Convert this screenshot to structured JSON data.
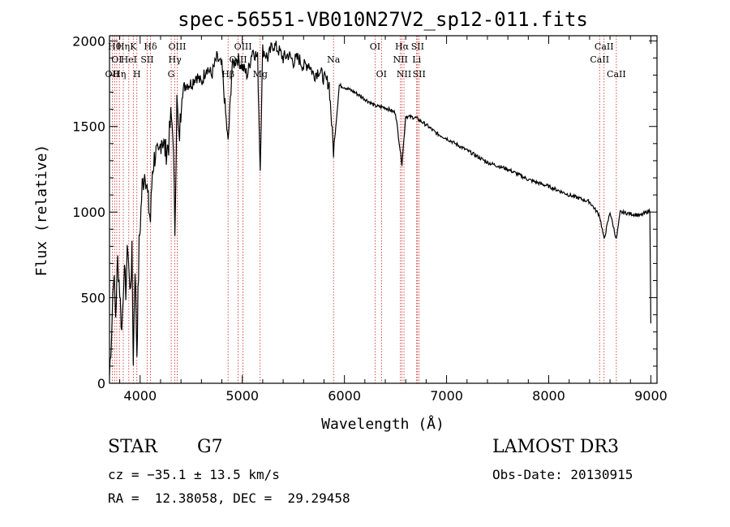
{
  "chart_data": {
    "type": "line",
    "title": "spec-56551-VB010N27V2_sp12-011.fits",
    "xlabel": "Wavelength (Å)",
    "ylabel": "Flux (relative)",
    "xlim": [
      3700,
      9060
    ],
    "ylim": [
      0,
      2030
    ],
    "xticks": [
      4000,
      5000,
      6000,
      7000,
      8000,
      9000
    ],
    "xtick_labels": [
      "4000",
      "5000",
      "6000",
      "7000",
      "8000",
      "9000"
    ],
    "yticks": [
      0,
      500,
      1000,
      1500,
      2000
    ],
    "ytick_labels": [
      "0",
      "500",
      "1000",
      "1500",
      "2000"
    ],
    "series": [
      {
        "name": "flux",
        "x": [
          3700,
          3720,
          3740,
          3760,
          3780,
          3800,
          3820,
          3840,
          3860,
          3880,
          3900,
          3920,
          3933,
          3950,
          3968,
          3990,
          4020,
          4050,
          4080,
          4101,
          4120,
          4150,
          4180,
          4210,
          4250,
          4280,
          4300,
          4320,
          4340,
          4360,
          4380,
          4410,
          4450,
          4500,
          4550,
          4600,
          4650,
          4700,
          4750,
          4800,
          4861,
          4900,
          4950,
          5000,
          5050,
          5100,
          5150,
          5175,
          5200,
          5250,
          5300,
          5350,
          5400,
          5450,
          5500,
          5550,
          5600,
          5650,
          5700,
          5750,
          5800,
          5850,
          5893,
          5950,
          6000,
          6100,
          6200,
          6300,
          6400,
          6500,
          6563,
          6600,
          6700,
          6800,
          6900,
          7000,
          7200,
          7400,
          7600,
          7800,
          8000,
          8200,
          8400,
          8498,
          8542,
          8600,
          8662,
          8700,
          8800,
          8900,
          8990,
          9000
        ],
        "values": [
          50,
          300,
          650,
          400,
          720,
          550,
          300,
          650,
          550,
          820,
          520,
          750,
          150,
          700,
          180,
          800,
          1150,
          1250,
          1050,
          950,
          1250,
          1350,
          1300,
          1450,
          1350,
          1400,
          1550,
          1500,
          900,
          1650,
          1400,
          1700,
          1750,
          1750,
          1800,
          1750,
          1850,
          1800,
          1900,
          1850,
          1400,
          1850,
          1900,
          1850,
          1800,
          1950,
          1900,
          1250,
          1950,
          1900,
          1980,
          1950,
          1900,
          1920,
          1880,
          1900,
          1850,
          1870,
          1800,
          1830,
          1780,
          1750,
          1350,
          1740,
          1730,
          1700,
          1660,
          1620,
          1610,
          1580,
          1280,
          1560,
          1550,
          1510,
          1460,
          1430,
          1360,
          1290,
          1250,
          1190,
          1150,
          1100,
          1060,
          980,
          840,
          1000,
          840,
          1000,
          990,
          980,
          1010,
          350
        ]
      }
    ],
    "lines": [
      {
        "wl": 3727,
        "label": "OII",
        "row": 3
      },
      {
        "wl": 3750,
        "label": "Hθ",
        "row": 1
      },
      {
        "wl": 3771,
        "label": "OI",
        "row": 2
      },
      {
        "wl": 3797,
        "label": "Hη",
        "row": 3
      },
      {
        "wl": 3835,
        "label": "Hη",
        "row": 1
      },
      {
        "wl": 3889,
        "label": "HeI",
        "row": 2
      },
      {
        "wl": 3933,
        "label": "K",
        "row": 1
      },
      {
        "wl": 3968,
        "label": "H",
        "row": 3
      },
      {
        "wl": 4069,
        "label": "SII",
        "row": 2
      },
      {
        "wl": 4101,
        "label": "Hδ",
        "row": 1
      },
      {
        "wl": 4304,
        "label": "G",
        "row": 3
      },
      {
        "wl": 4340,
        "label": "Hγ",
        "row": 2
      },
      {
        "wl": 4363,
        "label": "OIII",
        "row": 1
      },
      {
        "wl": 4861,
        "label": "Hβ",
        "row": 3
      },
      {
        "wl": 4959,
        "label": "OIII",
        "row": 2
      },
      {
        "wl": 5007,
        "label": "OIII",
        "row": 1
      },
      {
        "wl": 5175,
        "label": "Mg",
        "row": 3
      },
      {
        "wl": 5893,
        "label": "Na",
        "row": 2
      },
      {
        "wl": 6300,
        "label": "OI",
        "row": 1
      },
      {
        "wl": 6363,
        "label": "OI",
        "row": 3
      },
      {
        "wl": 6548,
        "label": "NII",
        "row": 2
      },
      {
        "wl": 6563,
        "label": "Hα",
        "row": 1
      },
      {
        "wl": 6583,
        "label": "NII",
        "row": 3
      },
      {
        "wl": 6707,
        "label": "Li",
        "row": 2
      },
      {
        "wl": 6716,
        "label": "SII",
        "row": 1
      },
      {
        "wl": 6731,
        "label": "SII",
        "row": 3
      },
      {
        "wl": 8498,
        "label": "CaII",
        "row": 2
      },
      {
        "wl": 8542,
        "label": "CaII",
        "row": 1
      },
      {
        "wl": 8662,
        "label": "CaII",
        "row": 3
      }
    ]
  },
  "info": {
    "obj_class": "STAR",
    "subclass": "G7",
    "survey": "LAMOST DR3",
    "redshift": "cz = −35.1 ± 13.5 km/s",
    "obs_date": "Obs-Date: 20130915",
    "coords": "RA =  12.38058, DEC =  29.29458"
  },
  "colors": {
    "axis": "#000000",
    "line_marker": "#cc2222",
    "flux": "#000000"
  }
}
